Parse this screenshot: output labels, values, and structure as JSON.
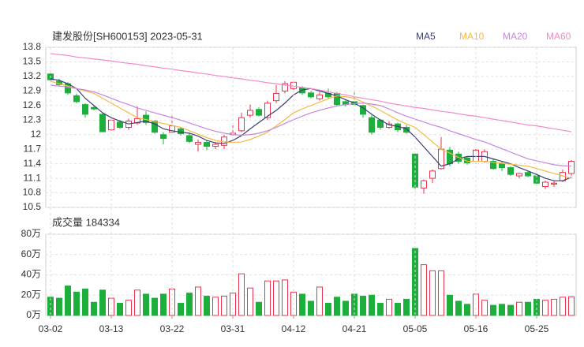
{
  "chart_data": [
    {
      "type": "candlestick",
      "title": "建发股份[SH600153] 2023-05-31",
      "ylim": [
        10.5,
        13.8
      ],
      "yticks": [
        13.8,
        13.5,
        13.2,
        12.9,
        12.6,
        12.3,
        12,
        11.7,
        11.4,
        11.1,
        10.8,
        10.5
      ],
      "grid": true,
      "up_color": "#e8344e",
      "down_color": "#1caf3c",
      "legend": "top-right",
      "open": [
        13.25,
        13.1,
        13.05,
        12.8,
        12.62,
        12.56,
        12.42,
        12.1,
        12.26,
        12.15,
        12.24,
        12.4,
        12.28,
        12.0,
        12.05,
        12.12,
        11.98,
        11.8,
        11.84,
        11.76,
        11.78,
        12.0,
        12.08,
        12.4,
        12.52,
        12.35,
        12.7,
        12.9,
        12.95,
        12.97,
        12.86,
        12.74,
        12.85,
        12.85,
        12.68,
        12.68,
        12.6,
        12.35,
        12.3,
        12.15,
        12.22,
        12.15,
        11.6,
        10.9,
        11.1,
        11.3,
        11.68,
        11.6,
        11.52,
        11.45,
        11.45,
        11.45,
        11.4,
        11.32,
        11.15,
        11.22,
        11.15,
        10.93,
        10.98,
        11.05,
        11.2
      ],
      "high": [
        13.32,
        13.15,
        13.08,
        12.85,
        12.65,
        12.6,
        12.45,
        12.32,
        12.3,
        12.33,
        12.58,
        12.48,
        12.3,
        12.05,
        12.4,
        12.15,
        12.02,
        11.9,
        11.88,
        11.85,
        12.0,
        12.2,
        12.45,
        12.62,
        12.56,
        12.7,
        13.02,
        13.1,
        13.12,
        13.0,
        12.9,
        12.88,
        12.95,
        12.88,
        12.72,
        12.92,
        12.62,
        12.4,
        12.32,
        12.28,
        12.25,
        12.2,
        11.62,
        11.08,
        11.28,
        11.95,
        11.75,
        11.65,
        11.55,
        11.72,
        11.7,
        11.5,
        11.45,
        11.35,
        11.22,
        11.25,
        11.2,
        11.05,
        11.05,
        11.28,
        11.48
      ],
      "low": [
        13.08,
        13.0,
        12.82,
        12.65,
        12.35,
        12.5,
        12.05,
        12.08,
        12.12,
        12.1,
        12.2,
        12.2,
        12.02,
        11.8,
        12.0,
        11.98,
        11.82,
        11.65,
        11.68,
        11.7,
        11.7,
        11.98,
        12.05,
        12.35,
        12.38,
        12.3,
        12.65,
        12.85,
        12.92,
        12.82,
        12.75,
        12.7,
        12.75,
        12.58,
        12.58,
        12.58,
        12.35,
        12.0,
        12.1,
        12.12,
        12.05,
        12.02,
        10.88,
        10.78,
        11.0,
        11.28,
        11.35,
        11.4,
        11.38,
        11.4,
        11.42,
        11.28,
        11.25,
        11.15,
        11.1,
        11.12,
        10.98,
        10.88,
        10.92,
        11.02,
        11.15
      ],
      "close": [
        13.13,
        13.03,
        12.86,
        12.68,
        12.42,
        12.53,
        12.06,
        12.3,
        12.15,
        12.28,
        12.33,
        12.25,
        12.05,
        11.92,
        12.18,
        12.02,
        11.86,
        11.84,
        11.76,
        11.8,
        11.95,
        12.03,
        12.35,
        12.5,
        12.4,
        12.65,
        12.85,
        13.05,
        13.08,
        12.86,
        12.78,
        12.82,
        12.78,
        12.62,
        12.62,
        12.62,
        12.42,
        12.05,
        12.15,
        12.22,
        12.1,
        12.05,
        10.92,
        11.05,
        11.25,
        11.7,
        11.4,
        11.45,
        11.42,
        11.68,
        11.65,
        11.3,
        11.32,
        11.18,
        11.2,
        11.15,
        11.0,
        11.02,
        11.0,
        11.22,
        11.45
      ],
      "series": [
        {
          "name": "MA5",
          "color": "#3b3f73",
          "values": [
            13.15,
            13.12,
            13.05,
            12.95,
            12.75,
            12.6,
            12.45,
            12.35,
            12.28,
            12.22,
            12.25,
            12.28,
            12.22,
            12.12,
            12.08,
            12.05,
            12.03,
            11.97,
            11.88,
            11.83,
            11.82,
            11.88,
            11.98,
            12.12,
            12.25,
            12.38,
            12.5,
            12.65,
            12.82,
            12.92,
            12.95,
            12.9,
            12.85,
            12.8,
            12.72,
            12.65,
            12.55,
            12.42,
            12.3,
            12.2,
            12.17,
            12.12,
            11.95,
            11.75,
            11.55,
            11.35,
            11.4,
            11.5,
            11.55,
            11.55,
            11.55,
            11.5,
            11.45,
            11.4,
            11.32,
            11.25,
            11.18,
            11.1,
            11.05,
            11.05,
            11.12
          ]
        },
        {
          "name": "MA10",
          "color": "#f5b945",
          "values": [
            13.1,
            13.05,
            13.0,
            12.95,
            12.9,
            12.85,
            12.75,
            12.65,
            12.55,
            12.45,
            12.35,
            12.31,
            12.27,
            12.23,
            12.19,
            12.15,
            12.08,
            12.01,
            11.94,
            11.88,
            11.85,
            11.84,
            11.85,
            11.9,
            11.97,
            12.05,
            12.18,
            12.31,
            12.45,
            12.53,
            12.6,
            12.67,
            12.74,
            12.8,
            12.78,
            12.75,
            12.67,
            12.59,
            12.5,
            12.4,
            12.3,
            12.22,
            12.15,
            12.0,
            11.85,
            11.7,
            11.62,
            11.53,
            11.45,
            11.45,
            11.45,
            11.43,
            11.41,
            11.39,
            11.37,
            11.35,
            11.3,
            11.25,
            11.2,
            11.15,
            11.1
          ]
        },
        {
          "name": "MA20",
          "color": "#c487e0",
          "values": [
            13.02,
            13.0,
            12.98,
            12.95,
            12.92,
            12.88,
            12.82,
            12.75,
            12.68,
            12.62,
            12.55,
            12.5,
            12.45,
            12.4,
            12.35,
            12.3,
            12.24,
            12.18,
            12.12,
            12.07,
            12.03,
            12.0,
            11.99,
            12.0,
            12.03,
            12.08,
            12.15,
            12.23,
            12.31,
            12.38,
            12.45,
            12.5,
            12.55,
            12.59,
            12.62,
            12.64,
            12.65,
            12.63,
            12.6,
            12.53,
            12.45,
            12.38,
            12.32,
            12.26,
            12.2,
            12.15,
            12.08,
            12.02,
            11.96,
            11.9,
            11.85,
            11.78,
            11.71,
            11.64,
            11.57,
            11.5,
            11.46,
            11.42,
            11.38,
            11.36,
            11.35
          ]
        },
        {
          "name": "MA60",
          "color": "#f28ac6",
          "values": [
            13.67,
            13.65,
            13.63,
            13.6,
            13.58,
            13.56,
            13.54,
            13.52,
            13.49,
            13.47,
            13.45,
            13.42,
            13.4,
            13.37,
            13.35,
            13.32,
            13.3,
            13.27,
            13.25,
            13.22,
            13.2,
            13.17,
            13.15,
            13.12,
            13.1,
            13.07,
            13.05,
            13.02,
            13.0,
            12.97,
            12.95,
            12.92,
            12.88,
            12.85,
            12.82,
            12.78,
            12.75,
            12.72,
            12.69,
            12.65,
            12.62,
            12.59,
            12.56,
            12.54,
            12.51,
            12.48,
            12.46,
            12.43,
            12.4,
            12.38,
            12.35,
            12.32,
            12.29,
            12.26,
            12.23,
            12.2,
            12.18,
            12.15,
            12.12,
            12.09,
            12.06
          ]
        }
      ]
    },
    {
      "type": "bar",
      "title": "成交量 184334",
      "ylim": [
        0,
        80
      ],
      "yticks": [
        {
          "value": 80,
          "label": "80万"
        },
        {
          "value": 60,
          "label": "60万"
        },
        {
          "value": 40,
          "label": "40万"
        },
        {
          "value": 20,
          "label": "20万"
        },
        {
          "value": 0,
          "label": "0万"
        }
      ],
      "grid": true,
      "categories": [
        "03-02",
        null,
        null,
        null,
        null,
        null,
        null,
        "03-13",
        null,
        null,
        null,
        null,
        null,
        null,
        "03-22",
        null,
        null,
        null,
        null,
        null,
        null,
        "03-31",
        null,
        null,
        null,
        null,
        null,
        null,
        "04-12",
        null,
        null,
        null,
        null,
        null,
        null,
        "04-21",
        null,
        null,
        null,
        null,
        null,
        null,
        "05-05",
        null,
        null,
        null,
        null,
        null,
        null,
        "05-16",
        null,
        null,
        null,
        null,
        null,
        null,
        "05-25",
        null,
        null,
        null,
        null
      ],
      "values": [
        18,
        17,
        29,
        23,
        26,
        13,
        25,
        17,
        12,
        15,
        25,
        21,
        17,
        21,
        26,
        12,
        22,
        28,
        19,
        18,
        19,
        22,
        41,
        27,
        13,
        34,
        34,
        35,
        23,
        21,
        14,
        28,
        12,
        18,
        14,
        21,
        19,
        20,
        12,
        16,
        12,
        16,
        66,
        50,
        44,
        44,
        20,
        14,
        11,
        21,
        15,
        10,
        11,
        10,
        13,
        13,
        16,
        15,
        16,
        18,
        18.43
      ]
    }
  ]
}
